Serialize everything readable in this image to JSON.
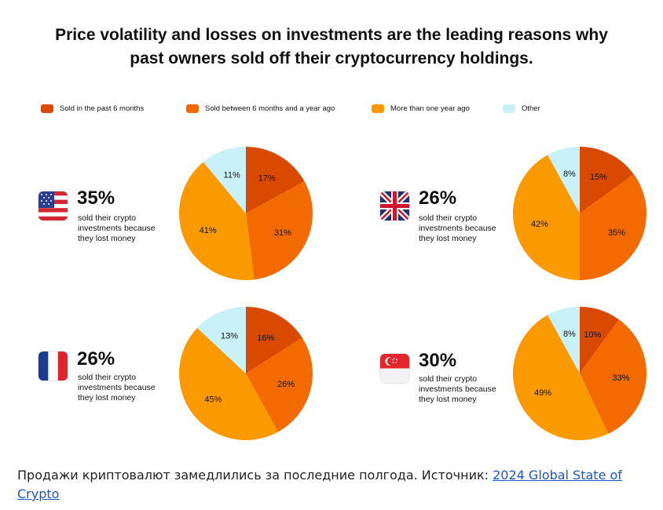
{
  "title_lines": [
    "Price volatility and losses on investments are the leading reasons why",
    "past owners sold off their cryptocurrency holdings."
  ],
  "legend": [
    {
      "label": "Sold in the past 6 months",
      "color": "#d94a00"
    },
    {
      "label": "Sold between 6 months and a year ago",
      "color": "#f26a00"
    },
    {
      "label": "More than one year ago",
      "color": "#fa9a00"
    },
    {
      "label": "Other",
      "color": "#c8f1fa"
    }
  ],
  "chart_data": [
    {
      "type": "pie",
      "country_flag": "us-flag-icon",
      "stat": "35%",
      "stat_text": [
        "sold their crypto",
        "investments because",
        "they lost money"
      ],
      "slices": [
        {
          "label": "Sold in the past 6 months",
          "value": 17
        },
        {
          "label": "Sold between 6 months and a year ago",
          "value": 31
        },
        {
          "label": "More than one year ago",
          "value": 41
        },
        {
          "label": "Other",
          "value": 11
        }
      ]
    },
    {
      "type": "pie",
      "country_flag": "uk-flag-icon",
      "stat": "26%",
      "stat_text": [
        "sold their crypto",
        "investments because",
        "they lost money"
      ],
      "slices": [
        {
          "label": "Sold in the past 6 months",
          "value": 15
        },
        {
          "label": "Sold between 6 months and a year ago",
          "value": 35
        },
        {
          "label": "More than one year ago",
          "value": 42
        },
        {
          "label": "Other",
          "value": 8
        }
      ]
    },
    {
      "type": "pie",
      "country_flag": "france-flag-icon",
      "stat": "26%",
      "stat_text": [
        "sold their crypto",
        "investments because",
        "they lost money"
      ],
      "slices": [
        {
          "label": "Sold in the past 6 months",
          "value": 16
        },
        {
          "label": "Sold between 6 months and a year ago",
          "value": 26
        },
        {
          "label": "More than one year ago",
          "value": 45
        },
        {
          "label": "Other",
          "value": 13
        }
      ]
    },
    {
      "type": "pie",
      "country_flag": "singapore-flag-icon",
      "stat": "30%",
      "stat_text": [
        "sold their crypto",
        "investments because",
        "they lost money"
      ],
      "slices": [
        {
          "label": "Sold in the past 6 months",
          "value": 10
        },
        {
          "label": "Sold between 6 months and a year ago",
          "value": 33
        },
        {
          "label": "More than one year ago",
          "value": 49
        },
        {
          "label": "Other",
          "value": 8
        }
      ]
    }
  ],
  "caption": {
    "text": "Продажи криптовалют замедлились за последние полгода. Источник: ",
    "link_text": "2024 Global State of Crypto"
  }
}
